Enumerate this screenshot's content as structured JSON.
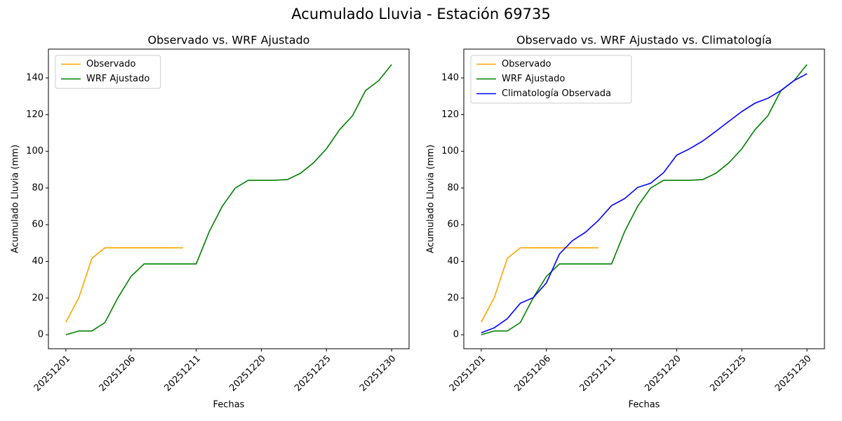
{
  "title": "Acumulado Lluvia - Estación 69735",
  "chart_data": [
    {
      "type": "line",
      "title": "Observado vs. WRF Ajustado",
      "xlabel": "Fechas",
      "ylabel": "Acumulado Lluvia (mm)",
      "categories": [
        "20251201",
        null,
        null,
        null,
        null,
        "20251206",
        null,
        null,
        null,
        null,
        "20251211",
        null,
        null,
        null,
        null,
        "20251220",
        null,
        null,
        null,
        null,
        "20251225",
        null,
        null,
        null,
        null,
        "20251230"
      ],
      "series": [
        {
          "name": "Observado",
          "color": "#ffa500",
          "values": [
            6.9,
            20.3,
            41.7,
            47.4,
            47.4,
            47.4,
            47.4,
            47.4,
            47.4,
            47.4,
            null,
            null,
            null,
            null,
            null,
            null,
            null,
            null,
            null,
            null,
            null,
            null,
            null,
            null,
            null,
            null
          ]
        },
        {
          "name": "WRF Ajustado",
          "color": "#008000",
          "values": [
            0,
            2.1,
            2.1,
            6.7,
            20.3,
            31.8,
            38.6,
            38.6,
            38.6,
            38.6,
            38.6,
            56.2,
            70,
            80,
            84.2,
            84.2,
            84.2,
            84.6,
            88,
            93.7,
            101.4,
            111.7,
            119.4,
            133.1,
            138.5,
            147.3
          ]
        }
      ],
      "ylim": [
        -7.6,
        155.7
      ],
      "yticks": [
        0,
        20,
        40,
        60,
        80,
        100,
        120,
        140
      ],
      "legend": "upper left"
    },
    {
      "type": "line",
      "title": "Observado vs. WRF Ajustado vs. Climatología",
      "xlabel": "Fechas",
      "ylabel": "Acumulado Lluvia (mm)",
      "categories": [
        "20251201",
        null,
        null,
        null,
        null,
        "20251206",
        null,
        null,
        null,
        null,
        "20251211",
        null,
        null,
        null,
        null,
        "20251220",
        null,
        null,
        null,
        null,
        "20251225",
        null,
        null,
        null,
        null,
        "20251230"
      ],
      "series": [
        {
          "name": "Observado",
          "color": "#ffa500",
          "values": [
            6.9,
            20.3,
            41.7,
            47.4,
            47.4,
            47.4,
            47.4,
            47.4,
            47.4,
            47.4,
            null,
            null,
            null,
            null,
            null,
            null,
            null,
            null,
            null,
            null,
            null,
            null,
            null,
            null,
            null,
            null
          ]
        },
        {
          "name": "WRF Ajustado",
          "color": "#008000",
          "values": [
            0,
            2.1,
            2.1,
            6.7,
            20.3,
            31.8,
            38.6,
            38.6,
            38.6,
            38.6,
            38.6,
            56.2,
            70,
            80,
            84.2,
            84.2,
            84.2,
            84.6,
            88,
            93.7,
            101.4,
            111.7,
            119.4,
            133.1,
            138.5,
            147.3
          ]
        },
        {
          "name": "Climatología Observada",
          "color": "#0000ff",
          "values": [
            1.1,
            3.8,
            8.8,
            17.2,
            20.3,
            28.3,
            44,
            51.3,
            55.9,
            62.4,
            70.4,
            74.2,
            80.3,
            82.6,
            88.4,
            97.9,
            101.4,
            105.6,
            110.9,
            116.3,
            121.7,
            126.2,
            128.9,
            133.1,
            138.5,
            142.3
          ]
        }
      ],
      "ylim": [
        -7.6,
        155.7
      ],
      "yticks": [
        0,
        20,
        40,
        60,
        80,
        100,
        120,
        140
      ],
      "legend": "upper left"
    }
  ]
}
